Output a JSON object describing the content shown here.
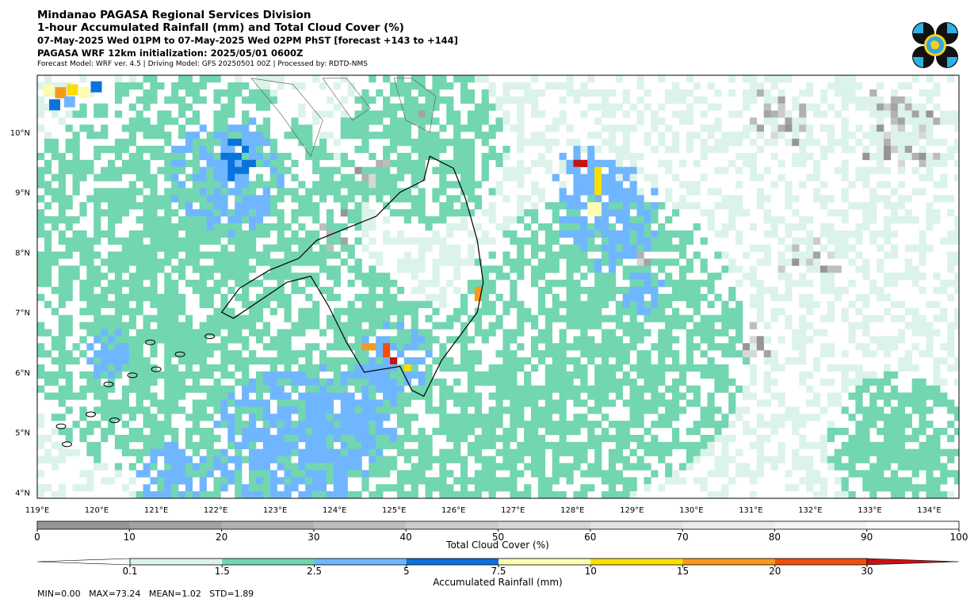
{
  "header": {
    "line1": "Mindanao PAGASA Regional Services Division",
    "line2": "1-hour Accumulated Rainfall (mm) and Total Cloud Cover (%)",
    "line3": "07-May-2025 Wed 01PM to 07-May-2025 Wed 02PM PhST [forecast +143 to +144]",
    "line4": "PAGASA WRF 12km initialization: 2025/05/01 0600Z",
    "line5": "Forecast Model: WRF ver. 4.5 | Driving Model: GFS 20250501 00Z | Processed by: RDTD-NMS"
  },
  "map": {
    "lon_range": [
      119,
      134.5
    ],
    "lat_range": [
      3.9,
      10.95
    ],
    "lon_ticks": [
      "119°E",
      "120°E",
      "121°E",
      "122°E",
      "123°E",
      "124°E",
      "125°E",
      "126°E",
      "127°E",
      "128°E",
      "129°E",
      "130°E",
      "131°E",
      "132°E",
      "133°E",
      "134°E"
    ],
    "lat_ticks": [
      "10°N",
      "9°N",
      "8°N",
      "7°N",
      "6°N",
      "5°N",
      "4°N"
    ]
  },
  "cloud_colorbar": {
    "title": "Total Cloud Cover (%)",
    "ticks": [
      "0",
      "10",
      "20",
      "30",
      "40",
      "50",
      "60",
      "70",
      "80",
      "90",
      "100"
    ],
    "colors": [
      "#959595",
      "#a3a3a3",
      "#b1b1b1",
      "#bebebe",
      "#cbcbcb",
      "#d7d7d7",
      "#e2e2e2",
      "#ececec",
      "#f4f4f4",
      "#fbfbfb"
    ]
  },
  "rain_colorbar": {
    "title": "Accumulated Rainfall (mm)",
    "ticks": [
      "0.1",
      "1.5",
      "2.5",
      "5",
      "7.5",
      "10",
      "15",
      "20",
      "30"
    ],
    "colors": [
      "#dcf3ea",
      "#72d6b0",
      "#6fb6ff",
      "#0a72dc",
      "#fdfbb0",
      "#f9e000",
      "#f79a1b",
      "#f04f0a",
      "#c61212"
    ],
    "under_color": "#ffffff"
  },
  "stats": {
    "text": "MIN=0.00   MAX=73.24   MEAN=1.02   STD=1.89"
  }
}
